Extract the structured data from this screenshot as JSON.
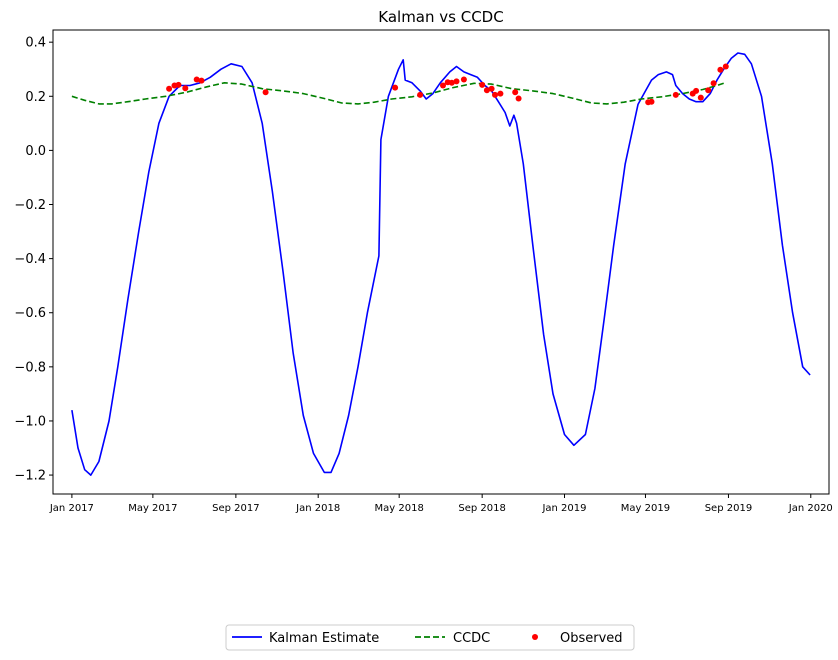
{
  "chart_data": {
    "type": "line",
    "title": "Kalman vs CCDC",
    "xlabel": "",
    "ylabel": "",
    "x_axis": {
      "type": "date",
      "tick_labels": [
        "Jan 2017",
        "May 2017",
        "Sep 2017",
        "Jan 2018",
        "May 2018",
        "Sep 2018",
        "Jan 2019",
        "May 2019",
        "Sep 2019",
        "Jan 2020"
      ],
      "tick_dates": [
        "2017-01-01",
        "2017-05-01",
        "2017-09-01",
        "2018-01-01",
        "2018-05-01",
        "2018-09-01",
        "2019-01-01",
        "2019-05-01",
        "2019-09-01",
        "2020-01-01"
      ],
      "range": [
        "2016-12-04",
        "2020-01-28"
      ]
    },
    "y_axis": {
      "tick_labels": [
        "−1.2",
        "−1.0",
        "−0.8",
        "−0.6",
        "−0.4",
        "−0.2",
        "0.0",
        "0.2",
        "0.4"
      ],
      "ticks": [
        -1.2,
        -1.0,
        -0.8,
        -0.6,
        -0.4,
        -0.2,
        0.0,
        0.2,
        0.4
      ],
      "ylim": [
        -1.27,
        0.445
      ]
    },
    "grid": false,
    "legend": {
      "placement": "bottom-center",
      "columns": 3
    },
    "series": [
      {
        "name": "Kalman Estimate",
        "style": "solid",
        "color": "#0000ff",
        "points": [
          [
            "2017-01-01",
            -0.96
          ],
          [
            "2017-01-10",
            -1.1
          ],
          [
            "2017-01-20",
            -1.18
          ],
          [
            "2017-01-29",
            -1.2
          ],
          [
            "2017-02-10",
            -1.15
          ],
          [
            "2017-02-25",
            -1.0
          ],
          [
            "2017-03-10",
            -0.8
          ],
          [
            "2017-03-25",
            -0.55
          ],
          [
            "2017-04-10",
            -0.3
          ],
          [
            "2017-04-25",
            -0.08
          ],
          [
            "2017-05-10",
            0.1
          ],
          [
            "2017-05-25",
            0.2
          ],
          [
            "2017-06-10",
            0.24
          ],
          [
            "2017-06-25",
            0.24
          ],
          [
            "2017-07-10",
            0.25
          ],
          [
            "2017-07-25",
            0.27
          ],
          [
            "2017-08-10",
            0.3
          ],
          [
            "2017-08-25",
            0.32
          ],
          [
            "2017-09-10",
            0.31
          ],
          [
            "2017-09-25",
            0.25
          ],
          [
            "2017-10-10",
            0.1
          ],
          [
            "2017-10-25",
            -0.15
          ],
          [
            "2017-11-10",
            -0.45
          ],
          [
            "2017-11-25",
            -0.75
          ],
          [
            "2017-12-10",
            -0.98
          ],
          [
            "2017-12-25",
            -1.12
          ],
          [
            "2018-01-10",
            -1.19
          ],
          [
            "2018-01-20",
            -1.19
          ],
          [
            "2018-02-01",
            -1.12
          ],
          [
            "2018-02-15",
            -0.98
          ],
          [
            "2018-03-01",
            -0.8
          ],
          [
            "2018-03-15",
            -0.6
          ],
          [
            "2018-04-01",
            -0.39
          ],
          [
            "2018-04-04",
            0.04
          ],
          [
            "2018-04-15",
            0.2
          ],
          [
            "2018-04-30",
            0.3
          ],
          [
            "2018-05-07",
            0.335
          ],
          [
            "2018-05-10",
            0.26
          ],
          [
            "2018-05-20",
            0.25
          ],
          [
            "2018-06-01",
            0.22
          ],
          [
            "2018-06-10",
            0.19
          ],
          [
            "2018-06-20",
            0.21
          ],
          [
            "2018-07-01",
            0.25
          ],
          [
            "2018-07-15",
            0.29
          ],
          [
            "2018-07-25",
            0.31
          ],
          [
            "2018-08-05",
            0.29
          ],
          [
            "2018-08-15",
            0.28
          ],
          [
            "2018-08-25",
            0.27
          ],
          [
            "2018-09-05",
            0.24
          ],
          [
            "2018-09-15",
            0.22
          ],
          [
            "2018-09-25",
            0.18
          ],
          [
            "2018-10-05",
            0.14
          ],
          [
            "2018-10-12",
            0.09
          ],
          [
            "2018-10-18",
            0.13
          ],
          [
            "2018-10-22",
            0.1
          ],
          [
            "2018-11-01",
            -0.05
          ],
          [
            "2018-11-15",
            -0.35
          ],
          [
            "2018-12-01",
            -0.68
          ],
          [
            "2018-12-15",
            -0.9
          ],
          [
            "2019-01-01",
            -1.05
          ],
          [
            "2019-01-15",
            -1.09
          ],
          [
            "2019-02-01",
            -1.05
          ],
          [
            "2019-02-15",
            -0.88
          ],
          [
            "2019-03-01",
            -0.62
          ],
          [
            "2019-03-15",
            -0.35
          ],
          [
            "2019-04-01",
            -0.05
          ],
          [
            "2019-04-20",
            0.17
          ],
          [
            "2019-05-01",
            0.22
          ],
          [
            "2019-05-10",
            0.26
          ],
          [
            "2019-05-20",
            0.28
          ],
          [
            "2019-06-01",
            0.29
          ],
          [
            "2019-06-10",
            0.28
          ],
          [
            "2019-06-15",
            0.24
          ],
          [
            "2019-06-25",
            0.21
          ],
          [
            "2019-07-05",
            0.19
          ],
          [
            "2019-07-15",
            0.18
          ],
          [
            "2019-07-25",
            0.18
          ],
          [
            "2019-08-05",
            0.21
          ],
          [
            "2019-08-15",
            0.26
          ],
          [
            "2019-08-25",
            0.3
          ],
          [
            "2019-09-05",
            0.34
          ],
          [
            "2019-09-15",
            0.36
          ],
          [
            "2019-09-25",
            0.355
          ],
          [
            "2019-10-05",
            0.32
          ],
          [
            "2019-10-20",
            0.2
          ],
          [
            "2019-11-05",
            -0.05
          ],
          [
            "2019-11-20",
            -0.35
          ],
          [
            "2019-12-05",
            -0.6
          ],
          [
            "2019-12-20",
            -0.8
          ],
          [
            "2019-12-31",
            -0.83
          ]
        ]
      },
      {
        "name": "CCDC",
        "style": "dashed",
        "color": "#008000",
        "points": [
          [
            "2017-01-01",
            0.2
          ],
          [
            "2017-01-20",
            0.185
          ],
          [
            "2017-02-10",
            0.172
          ],
          [
            "2017-03-01",
            0.172
          ],
          [
            "2017-03-25",
            0.18
          ],
          [
            "2017-04-20",
            0.19
          ],
          [
            "2017-05-20",
            0.2
          ],
          [
            "2017-06-20",
            0.215
          ],
          [
            "2017-07-20",
            0.235
          ],
          [
            "2017-08-15",
            0.25
          ],
          [
            "2017-09-10",
            0.245
          ],
          [
            "2017-10-10",
            0.228
          ],
          [
            "2017-11-10",
            0.22
          ],
          [
            "2017-12-10",
            0.21
          ],
          [
            "2018-01-10",
            0.192
          ],
          [
            "2018-02-05",
            0.175
          ],
          [
            "2018-03-01",
            0.172
          ],
          [
            "2018-03-25",
            0.178
          ],
          [
            "2018-04-20",
            0.19
          ],
          [
            "2018-05-20",
            0.198
          ],
          [
            "2018-06-20",
            0.212
          ],
          [
            "2018-07-20",
            0.232
          ],
          [
            "2018-08-20",
            0.248
          ],
          [
            "2018-09-15",
            0.245
          ],
          [
            "2018-10-15",
            0.228
          ],
          [
            "2018-11-15",
            0.22
          ],
          [
            "2018-12-15",
            0.21
          ],
          [
            "2019-01-15",
            0.192
          ],
          [
            "2019-02-10",
            0.175
          ],
          [
            "2019-03-05",
            0.172
          ],
          [
            "2019-03-30",
            0.178
          ],
          [
            "2019-04-25",
            0.19
          ],
          [
            "2019-05-25",
            0.198
          ],
          [
            "2019-06-25",
            0.21
          ],
          [
            "2019-07-25",
            0.225
          ],
          [
            "2019-08-15",
            0.24
          ],
          [
            "2019-08-25",
            0.248
          ]
        ]
      },
      {
        "name": "Observed",
        "style": "points",
        "color": "#ff0000",
        "points": [
          [
            "2017-05-25",
            0.228
          ],
          [
            "2017-06-02",
            0.24
          ],
          [
            "2017-06-08",
            0.242
          ],
          [
            "2017-06-18",
            0.23
          ],
          [
            "2017-07-05",
            0.262
          ],
          [
            "2017-07-12",
            0.258
          ],
          [
            "2017-10-15",
            0.215
          ],
          [
            "2018-04-25",
            0.232
          ],
          [
            "2018-06-01",
            0.205
          ],
          [
            "2018-07-05",
            0.24
          ],
          [
            "2018-07-12",
            0.252
          ],
          [
            "2018-07-18",
            0.25
          ],
          [
            "2018-07-25",
            0.255
          ],
          [
            "2018-08-05",
            0.262
          ],
          [
            "2018-09-01",
            0.242
          ],
          [
            "2018-09-08",
            0.222
          ],
          [
            "2018-09-15",
            0.228
          ],
          [
            "2018-09-20",
            0.205
          ],
          [
            "2018-09-28",
            0.21
          ],
          [
            "2018-10-20",
            0.215
          ],
          [
            "2018-10-25",
            0.192
          ],
          [
            "2019-05-05",
            0.178
          ],
          [
            "2019-05-10",
            0.18
          ],
          [
            "2019-06-15",
            0.205
          ],
          [
            "2019-07-10",
            0.21
          ],
          [
            "2019-07-15",
            0.22
          ],
          [
            "2019-07-22",
            0.195
          ],
          [
            "2019-08-02",
            0.222
          ],
          [
            "2019-08-10",
            0.248
          ],
          [
            "2019-08-20",
            0.298
          ],
          [
            "2019-08-28",
            0.31
          ]
        ]
      }
    ]
  }
}
